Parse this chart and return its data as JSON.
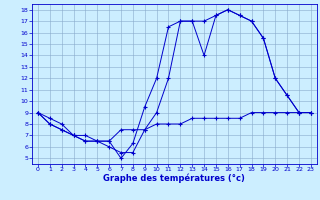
{
  "title": "Graphe des températures (°c)",
  "bg_color": "#cceeff",
  "line_color": "#0000cc",
  "grid_color": "#88aacc",
  "xlim": [
    -0.5,
    23.5
  ],
  "ylim": [
    4.5,
    18.5
  ],
  "xticks": [
    0,
    1,
    2,
    3,
    4,
    5,
    6,
    7,
    8,
    9,
    10,
    11,
    12,
    13,
    14,
    15,
    16,
    17,
    18,
    19,
    20,
    21,
    22,
    23
  ],
  "yticks": [
    5,
    6,
    7,
    8,
    9,
    10,
    11,
    12,
    13,
    14,
    15,
    16,
    17,
    18
  ],
  "series1_x": [
    0,
    1,
    2,
    3,
    4,
    5,
    6,
    7,
    8,
    9,
    10,
    11,
    12,
    13,
    14,
    15,
    16,
    17,
    18,
    19,
    20,
    21,
    22,
    23
  ],
  "series1_y": [
    9.0,
    8.5,
    8.0,
    7.0,
    6.5,
    6.5,
    6.5,
    5.0,
    6.3,
    9.5,
    12.0,
    16.5,
    17.0,
    17.0,
    14.0,
    17.5,
    18.0,
    17.5,
    17.0,
    15.5,
    12.0,
    10.5,
    9.0,
    9.0
  ],
  "series2_x": [
    0,
    1,
    2,
    3,
    4,
    5,
    6,
    7,
    8,
    9,
    10,
    11,
    12,
    13,
    14,
    15,
    16,
    17,
    18,
    19,
    20,
    21,
    22,
    23
  ],
  "series2_y": [
    9.0,
    8.0,
    7.5,
    7.0,
    7.0,
    6.5,
    6.5,
    7.5,
    7.5,
    7.5,
    8.0,
    8.0,
    8.0,
    8.5,
    8.5,
    8.5,
    8.5,
    8.5,
    9.0,
    9.0,
    9.0,
    9.0,
    9.0,
    9.0
  ],
  "series3_x": [
    0,
    1,
    2,
    3,
    4,
    5,
    6,
    7,
    8,
    9,
    10,
    11,
    12,
    13,
    14,
    15,
    16,
    17,
    18,
    19,
    20,
    21,
    22,
    23
  ],
  "series3_y": [
    9.0,
    8.0,
    7.5,
    7.0,
    6.5,
    6.5,
    6.0,
    5.5,
    5.5,
    7.5,
    9.0,
    12.0,
    17.0,
    17.0,
    17.0,
    17.5,
    18.0,
    17.5,
    17.0,
    15.5,
    12.0,
    10.5,
    9.0,
    9.0
  ]
}
